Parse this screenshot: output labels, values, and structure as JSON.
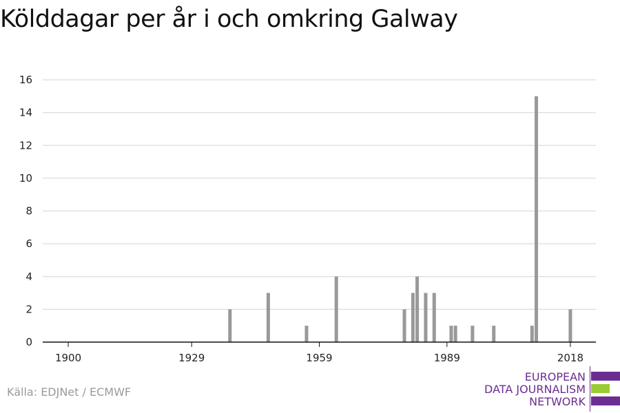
{
  "title": "Kölddagar per år i och omkring Galway",
  "source": "Källa: EDJNet / ECMWF",
  "logo": {
    "line1": "EUROPEAN",
    "line2": "DATA JOURNALISM",
    "line3": "NETWORK",
    "colors": {
      "text": "#6b2d91",
      "purple": "#6b2d91",
      "green": "#99cc33"
    }
  },
  "chart_data": {
    "type": "bar",
    "xlim": [
      1894,
      2024
    ],
    "ylim": [
      0,
      16
    ],
    "y_ticks": [
      0,
      2,
      4,
      6,
      8,
      10,
      12,
      14,
      16
    ],
    "x_ticks": [
      1900,
      1929,
      1959,
      1989,
      2018
    ],
    "x_tick_labels": [
      "1900",
      "1929",
      "1959",
      "1989",
      "2018"
    ],
    "y_tick_labels": [
      "0",
      "2",
      "4",
      "6",
      "8",
      "10",
      "12",
      "14",
      "16"
    ],
    "grid": true,
    "bar_color": "#999999",
    "x": [
      1938,
      1947,
      1956,
      1963,
      1979,
      1981,
      1982,
      1984,
      1986,
      1990,
      1991,
      1995,
      2000,
      2009,
      2010,
      2018
    ],
    "values": [
      2,
      3,
      1,
      4,
      2,
      3,
      4,
      3,
      3,
      1,
      1,
      1,
      1,
      1,
      15,
      2
    ]
  }
}
